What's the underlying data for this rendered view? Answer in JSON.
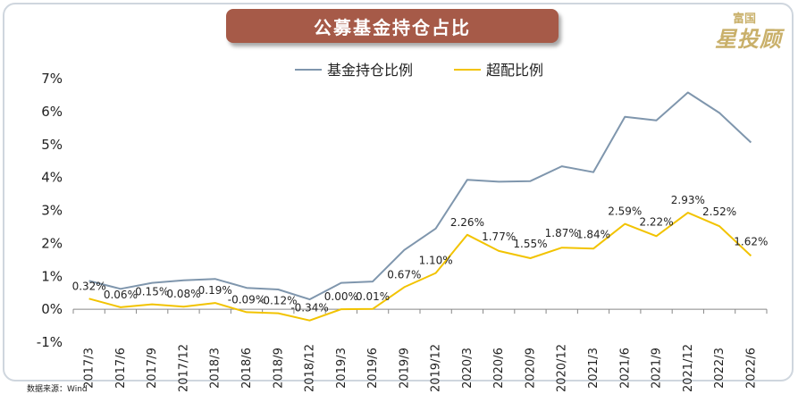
{
  "chart_data": {
    "type": "line",
    "title": "公募基金持仓占比",
    "categories": [
      "2017/3",
      "2017/6",
      "2017/9",
      "2017/12",
      "2018/3",
      "2018/6",
      "2018/9",
      "2018/12",
      "2019/3",
      "2019/6",
      "2019/9",
      "2019/12",
      "2020/3",
      "2020/6",
      "2020/9",
      "2020/12",
      "2021/3",
      "2021/6",
      "2021/9",
      "2021/12",
      "2022/3",
      "2022/6"
    ],
    "series": [
      {
        "name": "基金持仓比例",
        "color": "#7f96ad",
        "values": [
          0.86,
          0.62,
          0.8,
          0.88,
          0.92,
          0.65,
          0.6,
          0.3,
          0.8,
          0.84,
          1.8,
          2.45,
          3.93,
          3.87,
          3.89,
          4.34,
          4.16,
          5.84,
          5.73,
          6.58,
          5.96,
          5.06
        ]
      },
      {
        "name": "超配比例",
        "color": "#f2c300",
        "values": [
          0.32,
          0.06,
          0.15,
          0.08,
          0.19,
          -0.09,
          -0.12,
          -0.34,
          0.0,
          0.01,
          0.67,
          1.1,
          2.26,
          1.77,
          1.55,
          1.87,
          1.84,
          2.59,
          2.22,
          2.93,
          2.52,
          1.62
        ],
        "labels": [
          "0.32%",
          "0.06%",
          "0.15%",
          "0.08%",
          "0.19%",
          "-0.09%",
          "-0.12%",
          "-0.34%",
          "0.00%",
          "0.01%",
          "0.67%",
          "1.10%",
          "2.26%",
          "1.77%",
          "1.55%",
          "1.87%",
          "1.84%",
          "2.59%",
          "2.22%",
          "2.93%",
          "2.52%",
          "1.62%"
        ]
      }
    ],
    "y_ticks": [
      "7%",
      "6%",
      "5%",
      "4%",
      "3%",
      "2%",
      "1%",
      "0%",
      "-1%"
    ],
    "ylim": [
      -1,
      7
    ],
    "legend_position": "top-center"
  },
  "logo": {
    "top": "富国",
    "big": "星投顾"
  },
  "source": "数据来源：Wind"
}
